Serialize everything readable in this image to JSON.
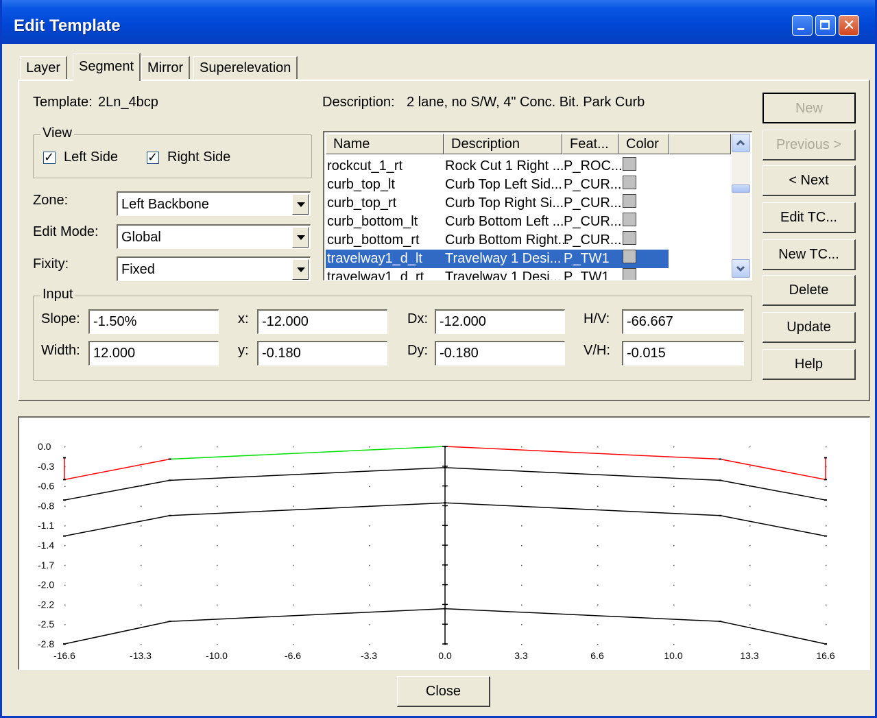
{
  "window": {
    "title": "Edit Template"
  },
  "tabs": [
    {
      "label": "Layer"
    },
    {
      "label": "Segment",
      "active": true
    },
    {
      "label": "Mirror"
    },
    {
      "label": "Superelevation"
    }
  ],
  "template": {
    "label": "Template:",
    "value": "2Ln_4bcp"
  },
  "description": {
    "label": "Description:",
    "value": "2 lane, no S/W, 4\" Conc. Bit. Park Curb"
  },
  "view": {
    "legend": "View",
    "left_side": {
      "label": "Left Side",
      "checked": true
    },
    "right_side": {
      "label": "Right Side",
      "checked": true
    }
  },
  "zone": {
    "label": "Zone:",
    "value": "Left Backbone"
  },
  "edit_mode": {
    "label": "Edit Mode:",
    "value": "Global"
  },
  "fixity": {
    "label": "Fixity:",
    "value": "Fixed"
  },
  "list": {
    "columns": [
      "Name",
      "Description",
      "Feat...",
      "Color"
    ],
    "rows": [
      {
        "name": "rockcut_1_rt",
        "description": "Rock Cut 1 Right ...",
        "feature": "P_ROC..."
      },
      {
        "name": "curb_top_lt",
        "description": "Curb Top Left Sid...",
        "feature": "P_CUR..."
      },
      {
        "name": "curb_top_rt",
        "description": "Curb Top Right Si...",
        "feature": "P_CUR..."
      },
      {
        "name": "curb_bottom_lt",
        "description": "Curb Bottom Left ...",
        "feature": "P_CUR..."
      },
      {
        "name": "curb_bottom_rt",
        "description": "Curb Bottom Right...",
        "feature": "P_CUR..."
      },
      {
        "name": "travelway1_d_lt",
        "description": "Travelway 1 Desi...",
        "feature": "P_TW1",
        "selected": true
      },
      {
        "name": "travelway1_d_rt",
        "description": "Travelway 1 Desi...",
        "feature": "P_TW1"
      }
    ],
    "swatch_color": "#c0c0c0",
    "selection_color": "#316ac5"
  },
  "input": {
    "legend": "Input",
    "slope": {
      "label": "Slope:",
      "value": "-1.50%"
    },
    "width": {
      "label": "Width:",
      "value": "12.000"
    },
    "x": {
      "label": "x:",
      "value": "-12.000"
    },
    "y": {
      "label": "y:",
      "value": "-0.180"
    },
    "dx": {
      "label": "Dx:",
      "value": "-12.000"
    },
    "dy": {
      "label": "Dy:",
      "value": "-0.180"
    },
    "hv": {
      "label": "H/V:",
      "value": "-66.667"
    },
    "vh": {
      "label": "V/H:",
      "value": "-0.015"
    }
  },
  "buttons": {
    "new": "New",
    "previous": "Previous >",
    "next": "< Next",
    "edit_tc": "Edit TC...",
    "new_tc": "New TC...",
    "delete": "Delete",
    "update": "Update",
    "help": "Help",
    "close": "Close"
  },
  "chart_data": {
    "type": "line",
    "x_ticks": [
      "-16.6",
      "-13.3",
      "-10.0",
      "-6.6",
      "-3.3",
      "0.0",
      "3.3",
      "6.6",
      "10.0",
      "13.3",
      "16.6"
    ],
    "y_ticks": [
      "0.0",
      "-0.3",
      "-0.6",
      "-0.8",
      "-1.1",
      "-1.4",
      "-1.7",
      "-2.0",
      "-2.2",
      "-2.5",
      "-2.8"
    ],
    "xlim": [
      -16.6,
      16.6
    ],
    "ylim": [
      -2.8,
      0.0
    ],
    "grid": "dotted",
    "series": [
      {
        "color": "#ff0000",
        "points": [
          [
            -16.6,
            -0.16
          ],
          [
            -16.6,
            -0.47
          ],
          [
            -12.0,
            -0.18
          ]
        ]
      },
      {
        "color": "#00e000",
        "points": [
          [
            -12.0,
            -0.18
          ],
          [
            0.0,
            0.0
          ]
        ]
      },
      {
        "color": "#ff0000",
        "points": [
          [
            0.0,
            0.0
          ],
          [
            12.0,
            -0.18
          ],
          [
            16.6,
            -0.47
          ],
          [
            16.6,
            -0.16
          ]
        ]
      },
      {
        "color": "#000000",
        "points": [
          [
            -16.6,
            -0.76
          ],
          [
            -12.0,
            -0.48
          ],
          [
            0.0,
            -0.3
          ],
          [
            12.0,
            -0.48
          ],
          [
            16.6,
            -0.76
          ]
        ]
      },
      {
        "color": "#000000",
        "points": [
          [
            -16.6,
            -1.27
          ],
          [
            -12.0,
            -0.98
          ],
          [
            0.0,
            -0.8
          ],
          [
            12.0,
            -0.98
          ],
          [
            16.6,
            -1.27
          ]
        ]
      },
      {
        "color": "#000000",
        "points": [
          [
            -16.6,
            -2.8
          ],
          [
            -12.0,
            -2.48
          ],
          [
            0.0,
            -2.3
          ],
          [
            12.0,
            -2.48
          ],
          [
            16.6,
            -2.8
          ]
        ]
      },
      {
        "color": "#000000",
        "points": [
          [
            0.0,
            0.0
          ],
          [
            0.0,
            -2.8
          ]
        ]
      }
    ]
  }
}
